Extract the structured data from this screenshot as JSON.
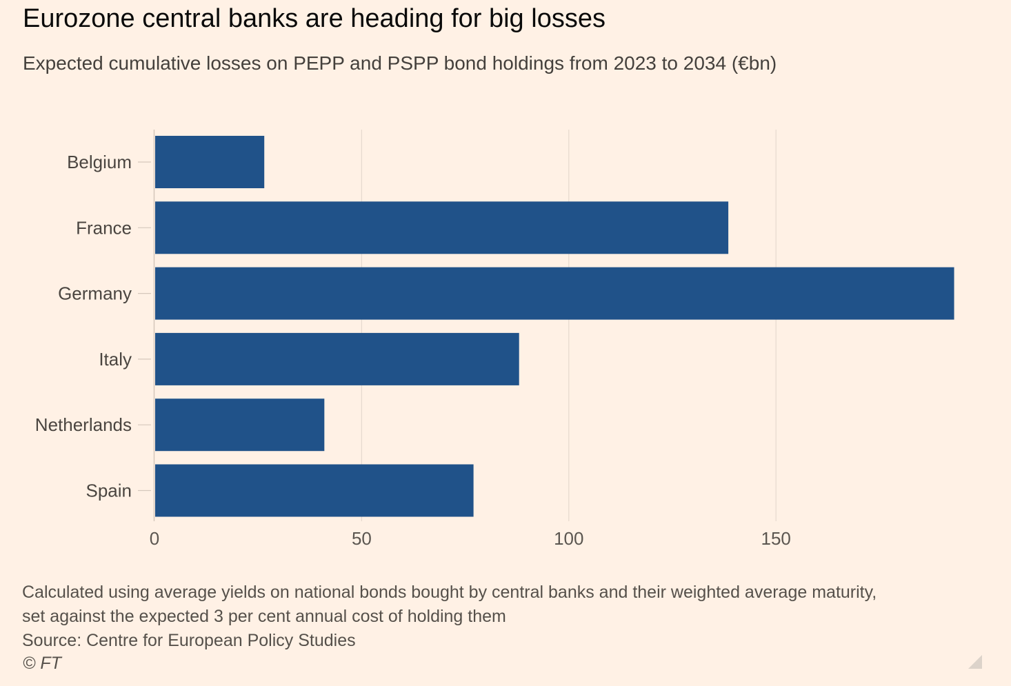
{
  "title": "Eurozone central banks are heading for big losses",
  "subtitle": "Expected cumulative losses on PEPP and PSPP bond holdings from 2023 to 2034 (€bn)",
  "footer": {
    "note_line1": "Calculated using average yields on national bonds bought by central banks and their weighted average maturity,",
    "note_line2": "set against the expected 3 per cent annual cost of holding them",
    "source": "Source: Centre for European Policy Studies",
    "copyright": "© FT"
  },
  "colors": {
    "bar": "#205289",
    "background": "#FFF1E5",
    "grid": "#E6D9CE"
  },
  "chart_data": {
    "type": "bar",
    "orientation": "horizontal",
    "categories": [
      "Belgium",
      "France",
      "Germany",
      "Italy",
      "Netherlands",
      "Spain"
    ],
    "values": [
      26.5,
      138.5,
      193,
      88,
      41,
      77
    ],
    "xlim": [
      0,
      200
    ],
    "xticks": [
      "0",
      "50",
      "100",
      "150"
    ],
    "grid": true
  }
}
